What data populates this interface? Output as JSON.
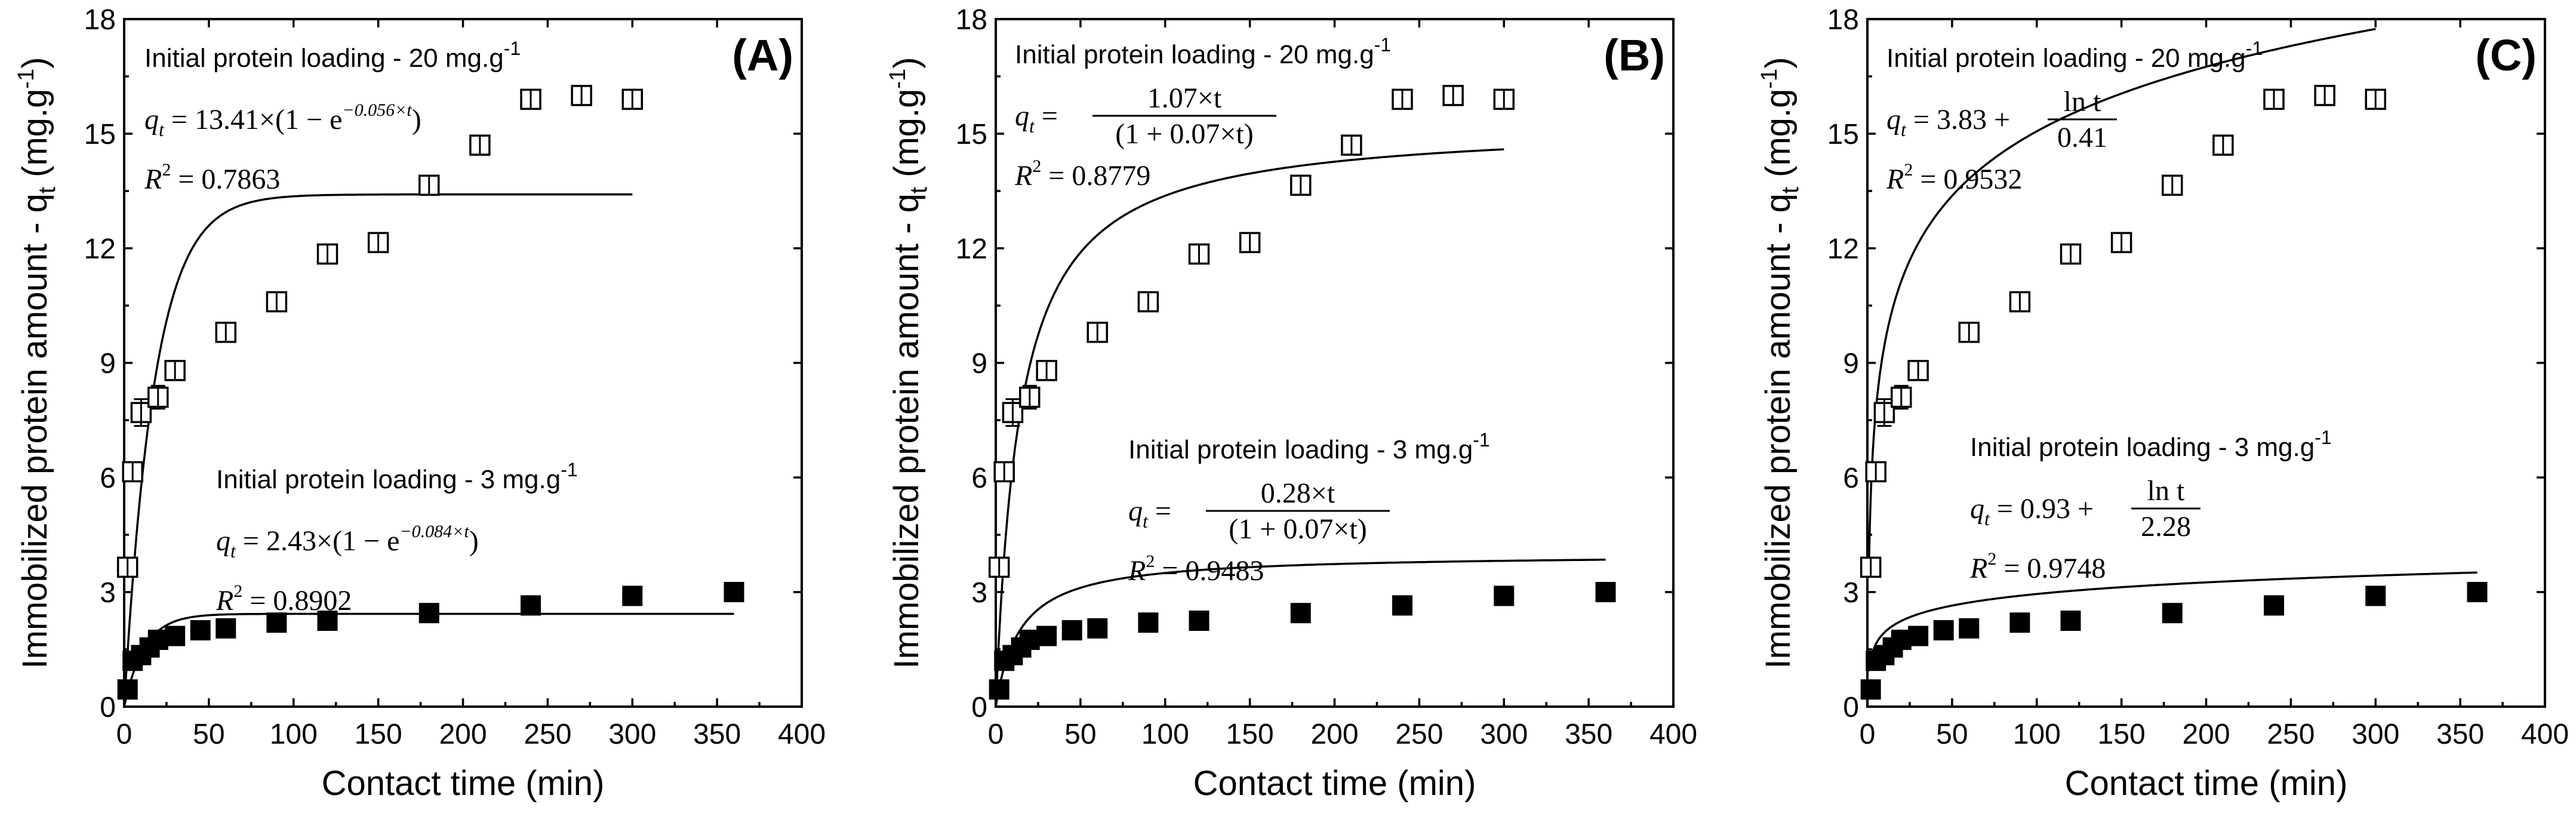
{
  "figure": {
    "panels": [
      {
        "id": "A",
        "letter": "(A)",
        "ylabel_main": "Immobilized protein amount - q",
        "ylabel_sub": "t",
        "ylabel_unit": " (mg.g",
        "ylabel_sup": "-1",
        "ylabel_close": ")",
        "xlabel": "Contact time (min)",
        "upper": {
          "title": "Initial protein loading - 20 mg.g",
          "title_sup": "-1",
          "eq_lhs": "q",
          "eq_lhs_sub": "t",
          "eq_rhs": "= 13.41×(1 − e",
          "eq_rhs_sup": "−0.056×t",
          "eq_rhs_end": ")",
          "r2_label": "R",
          "r2_sup": "2",
          "r2_value": "= 0.7863"
        },
        "lower": {
          "title": "Initial protein loading - 3 mg.g",
          "title_sup": "-1",
          "eq_lhs": "q",
          "eq_lhs_sub": "t",
          "eq_rhs": "= 2.43×(1 − e",
          "eq_rhs_sup": "−0.084×t",
          "eq_rhs_end": ")",
          "r2_label": "R",
          "r2_sup": "2",
          "r2_value": "= 0.8902"
        }
      },
      {
        "id": "B",
        "letter": "(B)",
        "ylabel_main": "Immobilized protein amount - q",
        "ylabel_sub": "t",
        "ylabel_unit": " (mg.g",
        "ylabel_sup": "-1",
        "ylabel_close": ")",
        "xlabel": "Contact time (min)",
        "upper": {
          "title": "Initial protein loading - 20 mg.g",
          "title_sup": "-1",
          "eq_lhs": "q",
          "eq_lhs_sub": "t",
          "eq_num": "1.07×t",
          "eq_den": "(1 + 0.07×t)",
          "r2_label": "R",
          "r2_sup": "2",
          "r2_value": "= 0.8779"
        },
        "lower": {
          "title": "Initial protein loading - 3 mg.g",
          "title_sup": "-1",
          "eq_lhs": "q",
          "eq_lhs_sub": "t",
          "eq_num": "0.28×t",
          "eq_den": "(1 + 0.07×t)",
          "r2_label": "R",
          "r2_sup": "2",
          "r2_value": "= 0.9483"
        }
      },
      {
        "id": "C",
        "letter": "(C)",
        "ylabel_main": "Immobilized protein amount - q",
        "ylabel_sub": "t",
        "ylabel_unit": " (mg.g",
        "ylabel_sup": "-1",
        "ylabel_close": ")",
        "xlabel": "Contact time (min)",
        "upper": {
          "title": "Initial protein loading - 20 mg.g",
          "title_sup": "-1",
          "eq_lhs": "q",
          "eq_lhs_sub": "t",
          "eq_pre": "= 3.83 +",
          "eq_num": "ln t",
          "eq_den": "0.41",
          "r2_label": "R",
          "r2_sup": "2",
          "r2_value": "= 0.9532"
        },
        "lower": {
          "title": "Initial protein loading - 3 mg.g",
          "title_sup": "-1",
          "eq_lhs": "q",
          "eq_lhs_sub": "t",
          "eq_pre": "= 0.93 +",
          "eq_num": "ln t",
          "eq_den": "2.28",
          "r2_label": "R",
          "r2_sup": "2",
          "r2_value": "= 0.9748"
        }
      }
    ]
  },
  "chart_data": [
    {
      "type": "scatter",
      "panel": "A",
      "title": "(A)",
      "xlabel": "Contact time (min)",
      "ylabel": "Immobilized protein amount - qt (mg.g-1)",
      "xlim": [
        0,
        400
      ],
      "ylim": [
        0,
        18
      ],
      "xticks": [
        0,
        50,
        100,
        150,
        200,
        250,
        300,
        350,
        400
      ],
      "yticks": [
        0,
        3,
        6,
        9,
        12,
        15,
        18
      ],
      "series": [
        {
          "name": "Initial protein loading - 20 mg.g-1",
          "marker": "open-square",
          "x": [
            2,
            5,
            10,
            20,
            30,
            60,
            90,
            120,
            150,
            180,
            210,
            240,
            270,
            300
          ],
          "y": [
            3.65,
            6.15,
            7.7,
            8.1,
            8.8,
            9.8,
            10.6,
            11.85,
            12.15,
            13.65,
            14.7,
            15.9,
            16.0,
            15.9
          ],
          "error": [
            0.1,
            0.15,
            0.35,
            0.3,
            0.15,
            0.2,
            0.12,
            0.25,
            0.2,
            0.15,
            0.15,
            0.2,
            0.2,
            0.18
          ]
        },
        {
          "name": "Initial protein loading - 3 mg.g-1",
          "marker": "filled-square",
          "x": [
            2,
            5,
            10,
            15,
            20,
            30,
            45,
            60,
            90,
            120,
            180,
            240,
            300,
            360
          ],
          "y": [
            0.45,
            1.2,
            1.35,
            1.55,
            1.75,
            1.85,
            2.0,
            2.05,
            2.2,
            2.25,
            2.45,
            2.65,
            2.9,
            3.0
          ]
        }
      ],
      "fits": [
        {
          "series": "Initial protein loading - 20 mg.g-1",
          "model": "pseudo-first-order",
          "qe": 13.41,
          "k": 0.056,
          "x_range": [
            0,
            300
          ],
          "r2": 0.7863
        },
        {
          "series": "Initial protein loading - 3 mg.g-1",
          "model": "pseudo-first-order",
          "qe": 2.43,
          "k": 0.084,
          "x_range": [
            0,
            360
          ],
          "r2": 0.8902
        }
      ]
    },
    {
      "type": "scatter",
      "panel": "B",
      "title": "(B)",
      "xlabel": "Contact time (min)",
      "ylabel": "Immobilized protein amount - qt (mg.g-1)",
      "xlim": [
        0,
        400
      ],
      "ylim": [
        0,
        18
      ],
      "xticks": [
        0,
        50,
        100,
        150,
        200,
        250,
        300,
        350,
        400
      ],
      "yticks": [
        0,
        3,
        6,
        9,
        12,
        15,
        18
      ],
      "series": [
        {
          "name": "Initial protein loading - 20 mg.g-1",
          "marker": "open-square",
          "x": [
            2,
            5,
            10,
            20,
            30,
            60,
            90,
            120,
            150,
            180,
            210,
            240,
            270,
            300
          ],
          "y": [
            3.65,
            6.15,
            7.7,
            8.1,
            8.8,
            9.8,
            10.6,
            11.85,
            12.15,
            13.65,
            14.7,
            15.9,
            16.0,
            15.9
          ],
          "error": [
            0.1,
            0.15,
            0.35,
            0.3,
            0.15,
            0.2,
            0.12,
            0.25,
            0.2,
            0.15,
            0.15,
            0.2,
            0.2,
            0.18
          ]
        },
        {
          "name": "Initial protein loading - 3 mg.g-1",
          "marker": "filled-square",
          "x": [
            2,
            5,
            10,
            15,
            20,
            30,
            45,
            60,
            90,
            120,
            180,
            240,
            300,
            360
          ],
          "y": [
            0.45,
            1.2,
            1.35,
            1.55,
            1.75,
            1.85,
            2.0,
            2.05,
            2.2,
            2.25,
            2.45,
            2.65,
            2.9,
            3.0
          ]
        }
      ],
      "fits": [
        {
          "series": "Initial protein loading - 20 mg.g-1",
          "model": "hyperbolic",
          "a": 1.07,
          "b": 0.07,
          "x_range": [
            0,
            300
          ],
          "r2": 0.8779
        },
        {
          "series": "Initial protein loading - 3 mg.g-1",
          "model": "hyperbolic",
          "a": 0.28,
          "b": 0.07,
          "x_range": [
            0,
            360
          ],
          "r2": 0.9483
        }
      ]
    },
    {
      "type": "scatter",
      "panel": "C",
      "title": "(C)",
      "xlabel": "Contact time (min)",
      "ylabel": "Immobilized protein amount - qt (mg.g-1)",
      "xlim": [
        0,
        400
      ],
      "ylim": [
        0,
        18
      ],
      "xticks": [
        0,
        50,
        100,
        150,
        200,
        250,
        300,
        350,
        400
      ],
      "yticks": [
        0,
        3,
        6,
        9,
        12,
        15,
        18
      ],
      "series": [
        {
          "name": "Initial protein loading - 20 mg.g-1",
          "marker": "open-square",
          "x": [
            2,
            5,
            10,
            20,
            30,
            60,
            90,
            120,
            150,
            180,
            210,
            240,
            270,
            300
          ],
          "y": [
            3.65,
            6.15,
            7.7,
            8.1,
            8.8,
            9.8,
            10.6,
            11.85,
            12.15,
            13.65,
            14.7,
            15.9,
            16.0,
            15.9
          ],
          "error": [
            0.1,
            0.15,
            0.35,
            0.3,
            0.15,
            0.2,
            0.12,
            0.25,
            0.2,
            0.15,
            0.15,
            0.2,
            0.2,
            0.18
          ]
        },
        {
          "name": "Initial protein loading - 3 mg.g-1",
          "marker": "filled-square",
          "x": [
            2,
            5,
            10,
            15,
            20,
            30,
            45,
            60,
            90,
            120,
            180,
            240,
            300,
            360
          ],
          "y": [
            0.45,
            1.2,
            1.35,
            1.55,
            1.75,
            1.85,
            2.0,
            2.05,
            2.2,
            2.25,
            2.45,
            2.65,
            2.9,
            3.0
          ]
        }
      ],
      "fits": [
        {
          "series": "Initial protein loading - 20 mg.g-1",
          "model": "logarithmic",
          "a": 3.83,
          "b": 0.41,
          "x_range": [
            1,
            300
          ],
          "r2": 0.9532
        },
        {
          "series": "Initial protein loading - 3 mg.g-1",
          "model": "logarithmic",
          "a": 0.93,
          "b": 2.28,
          "x_range": [
            1,
            360
          ],
          "r2": 0.9748
        }
      ]
    }
  ]
}
